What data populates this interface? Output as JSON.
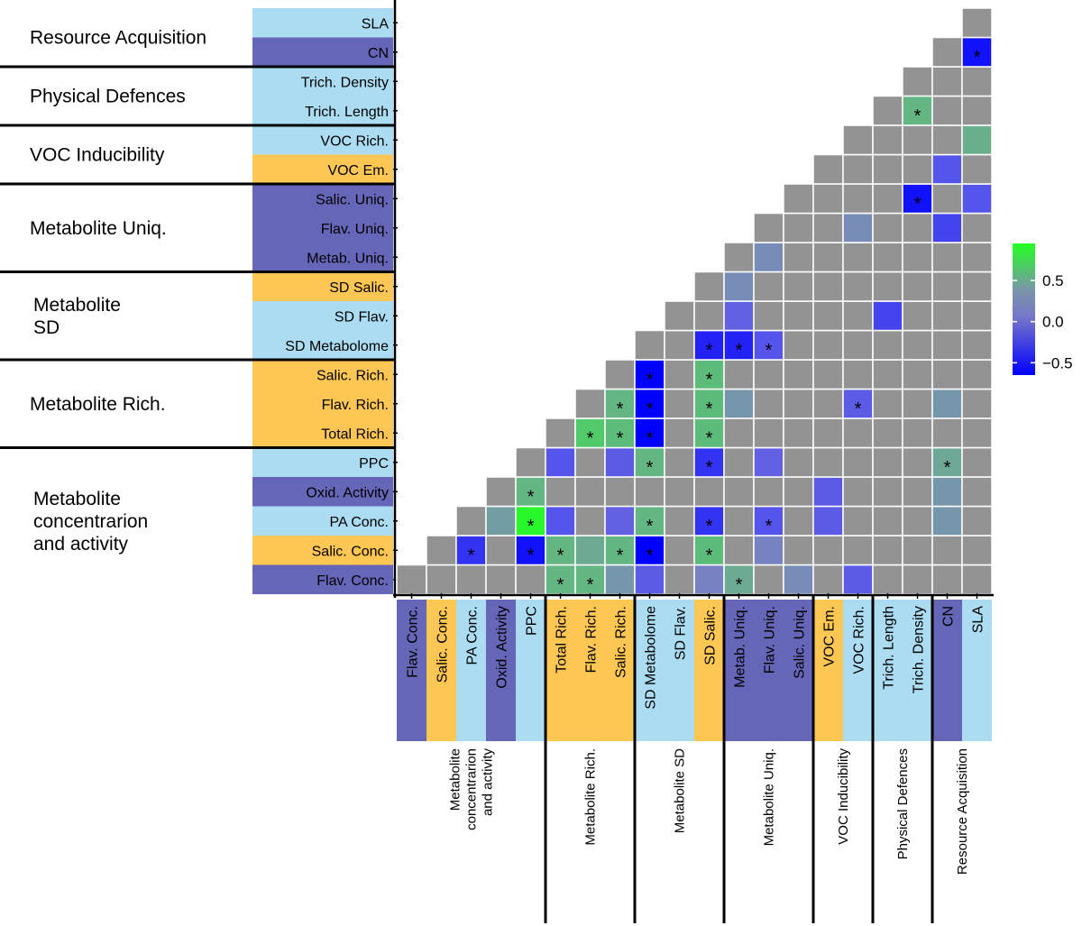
{
  "chart_data": {
    "type": "heatmap",
    "title": "",
    "variables": [
      "Flav. Conc.",
      "Salic. Conc.",
      "PA Conc.",
      "Oxid. Activity",
      "PPC",
      "Total Rich.",
      "Flav. Rich.",
      "Salic. Rich.",
      "SD Metabolome",
      "SD Flav.",
      "SD Salic.",
      "Metab. Uniq.",
      "Flav. Uniq.",
      "Salic. Uniq.",
      "VOC Em.",
      "VOC Rich.",
      "Trich. Length",
      "Trich. Density",
      "CN",
      "SLA"
    ],
    "variable_category": [
      "dark",
      "orange",
      "light",
      "dark",
      "light",
      "orange",
      "orange",
      "orange",
      "light",
      "light",
      "orange",
      "dark",
      "dark",
      "dark",
      "orange",
      "light",
      "light",
      "light",
      "dark",
      "light"
    ],
    "category_colors": {
      "dark": "#6666b8",
      "orange": "#fec652",
      "light": "#abdcf2",
      "nonsig": "#939393",
      "grid": "#ffffff"
    },
    "groups": [
      {
        "name": "Resource Acquisition",
        "left_label": "Resource Acquisition",
        "members": [
          "CN",
          "SLA"
        ]
      },
      {
        "name": "Physical Defences",
        "left_label": "Physical Defences",
        "members": [
          "Trich. Length",
          "Trich. Density"
        ]
      },
      {
        "name": "VOC Inducibility",
        "left_label": "VOC Inducibility",
        "members": [
          "VOC Em.",
          "VOC Rich."
        ]
      },
      {
        "name": "Metabolite Uniq.",
        "left_label": "Metabolite Uniq.",
        "members": [
          "Metab. Uniq.",
          "Flav. Uniq.",
          "Salic. Uniq."
        ]
      },
      {
        "name": "Metabolite SD",
        "left_label_lines": [
          "Metabolite",
          "SD"
        ],
        "members": [
          "SD Metabolome",
          "SD Flav.",
          "SD Salic."
        ]
      },
      {
        "name": "Metabolite Rich.",
        "left_label": "Metabolite Rich.",
        "members": [
          "Total Rich.",
          "Flav. Rich.",
          "Salic. Rich."
        ]
      },
      {
        "name": "Metabolite concentrarion and activity",
        "left_label_lines": [
          "Metabolite",
          "concentrarion",
          "and activity"
        ],
        "members": [
          "Flav. Conc.",
          "Salic. Conc.",
          "PA Conc.",
          "Oxid. Activity",
          "PPC"
        ]
      }
    ],
    "bottom_group_labels": [
      {
        "lines": [
          "Metabolite",
          "concentrarion",
          "and activity"
        ]
      },
      {
        "lines": [
          "Metabolite Rich."
        ]
      },
      {
        "lines": [
          "Metabolite SD"
        ]
      },
      {
        "lines": [
          "Metabolite Uniq."
        ]
      },
      {
        "lines": [
          "VOC Inducibility"
        ]
      },
      {
        "lines": [
          "Physical Defences"
        ]
      },
      {
        "lines": [
          "Resource Acquisition"
        ]
      }
    ],
    "cells": [
      {
        "row": "Salic. Conc.",
        "col": "PA Conc.",
        "value": -0.5,
        "sig": true
      },
      {
        "row": "PA Conc.",
        "col": "Oxid. Activity",
        "value": 0.15,
        "sig": false
      },
      {
        "row": "Salic. Conc.",
        "col": "PPC",
        "value": -0.6,
        "sig": true
      },
      {
        "row": "PA Conc.",
        "col": "PPC",
        "value": 0.9,
        "sig": true
      },
      {
        "row": "Oxid. Activity",
        "col": "PPC",
        "value": 0.4,
        "sig": true
      },
      {
        "row": "Flav. Conc.",
        "col": "Total Rich.",
        "value": 0.4,
        "sig": true
      },
      {
        "row": "Salic. Conc.",
        "col": "Total Rich.",
        "value": 0.4,
        "sig": true
      },
      {
        "row": "PA Conc.",
        "col": "Total Rich.",
        "value": -0.4,
        "sig": false
      },
      {
        "row": "PPC",
        "col": "Total Rich.",
        "value": -0.4,
        "sig": false
      },
      {
        "row": "Flav. Conc.",
        "col": "Flav. Rich.",
        "value": 0.4,
        "sig": true
      },
      {
        "row": "Salic. Conc.",
        "col": "Flav. Rich.",
        "value": 0.3,
        "sig": false
      },
      {
        "row": "Total Rich.",
        "col": "Flav. Rich.",
        "value": 0.55,
        "sig": true
      },
      {
        "row": "Flav. Conc.",
        "col": "Salic. Rich.",
        "value": 0.05,
        "sig": false
      },
      {
        "row": "Salic. Conc.",
        "col": "Salic. Rich.",
        "value": 0.4,
        "sig": true
      },
      {
        "row": "PA Conc.",
        "col": "Salic. Rich.",
        "value": -0.3,
        "sig": false
      },
      {
        "row": "PPC",
        "col": "Salic. Rich.",
        "value": -0.35,
        "sig": false
      },
      {
        "row": "Total Rich.",
        "col": "Salic. Rich.",
        "value": 0.45,
        "sig": true
      },
      {
        "row": "Flav. Rich.",
        "col": "Salic. Rich.",
        "value": 0.4,
        "sig": true
      },
      {
        "row": "Flav. Conc.",
        "col": "SD Metabolome",
        "value": -0.35,
        "sig": false
      },
      {
        "row": "Salic. Conc.",
        "col": "SD Metabolome",
        "value": -0.7,
        "sig": true
      },
      {
        "row": "PA Conc.",
        "col": "SD Metabolome",
        "value": 0.4,
        "sig": true
      },
      {
        "row": "PPC",
        "col": "SD Metabolome",
        "value": 0.4,
        "sig": true
      },
      {
        "row": "Total Rich.",
        "col": "SD Metabolome",
        "value": -0.7,
        "sig": true
      },
      {
        "row": "Flav. Rich.",
        "col": "SD Metabolome",
        "value": -0.7,
        "sig": true
      },
      {
        "row": "Salic. Rich.",
        "col": "SD Metabolome",
        "value": -0.65,
        "sig": true
      },
      {
        "row": "Flav. Conc.",
        "col": "SD Salic.",
        "value": -0.05,
        "sig": false
      },
      {
        "row": "Salic. Conc.",
        "col": "SD Salic.",
        "value": 0.45,
        "sig": true
      },
      {
        "row": "PA Conc.",
        "col": "SD Salic.",
        "value": -0.5,
        "sig": true
      },
      {
        "row": "PPC",
        "col": "SD Salic.",
        "value": -0.5,
        "sig": true
      },
      {
        "row": "Total Rich.",
        "col": "SD Salic.",
        "value": 0.45,
        "sig": true
      },
      {
        "row": "Flav. Rich.",
        "col": "SD Salic.",
        "value": 0.45,
        "sig": true
      },
      {
        "row": "Salic. Rich.",
        "col": "SD Salic.",
        "value": 0.45,
        "sig": true
      },
      {
        "row": "SD Metabolome",
        "col": "SD Salic.",
        "value": -0.55,
        "sig": true
      },
      {
        "row": "Flav. Conc.",
        "col": "Metab. Uniq.",
        "value": 0.3,
        "sig": true
      },
      {
        "row": "Flav. Rich.",
        "col": "Metab. Uniq.",
        "value": 0.05,
        "sig": false
      },
      {
        "row": "SD Metabolome",
        "col": "Metab. Uniq.",
        "value": -0.55,
        "sig": true
      },
      {
        "row": "SD Flav.",
        "col": "Metab. Uniq.",
        "value": -0.3,
        "sig": false
      },
      {
        "row": "SD Salic.",
        "col": "Metab. Uniq.",
        "value": 0.0,
        "sig": false
      },
      {
        "row": "Salic. Conc.",
        "col": "Flav. Uniq.",
        "value": -0.05,
        "sig": false
      },
      {
        "row": "PA Conc.",
        "col": "Flav. Uniq.",
        "value": -0.4,
        "sig": true
      },
      {
        "row": "PPC",
        "col": "Flav. Uniq.",
        "value": -0.3,
        "sig": false
      },
      {
        "row": "SD Metabolome",
        "col": "Flav. Uniq.",
        "value": -0.4,
        "sig": true
      },
      {
        "row": "Metab. Uniq.",
        "col": "Flav. Uniq.",
        "value": 0.0,
        "sig": false
      },
      {
        "row": "Flav. Conc.",
        "col": "Salic. Uniq.",
        "value": 0.0,
        "sig": false
      },
      {
        "row": "PA Conc.",
        "col": "VOC Em.",
        "value": -0.35,
        "sig": false
      },
      {
        "row": "Oxid. Activity",
        "col": "VOC Em.",
        "value": -0.35,
        "sig": false
      },
      {
        "row": "Flav. Conc.",
        "col": "VOC Rich.",
        "value": -0.35,
        "sig": false
      },
      {
        "row": "Flav. Rich.",
        "col": "VOC Rich.",
        "value": -0.35,
        "sig": true
      },
      {
        "row": "Flav. Uniq.",
        "col": "VOC Rich.",
        "value": 0.0,
        "sig": false
      },
      {
        "row": "SD Flav.",
        "col": "Trich. Length",
        "value": -0.45,
        "sig": false
      },
      {
        "row": "Trich. Length",
        "col": "Trich. Density",
        "value": 0.4,
        "sig": true
      },
      {
        "row": "Salic. Uniq.",
        "col": "Trich. Density",
        "value": -0.6,
        "sig": true
      },
      {
        "row": "PA Conc.",
        "col": "CN",
        "value": 0.05,
        "sig": false
      },
      {
        "row": "Oxid. Activity",
        "col": "CN",
        "value": 0.05,
        "sig": false
      },
      {
        "row": "PPC",
        "col": "CN",
        "value": 0.25,
        "sig": true
      },
      {
        "row": "Flav. Rich.",
        "col": "CN",
        "value": 0.05,
        "sig": false
      },
      {
        "row": "Flav. Uniq.",
        "col": "CN",
        "value": -0.45,
        "sig": false
      },
      {
        "row": "VOC Em.",
        "col": "CN",
        "value": -0.4,
        "sig": false
      },
      {
        "row": "CN",
        "col": "SLA",
        "value": -0.6,
        "sig": true
      },
      {
        "row": "VOC Rich.",
        "col": "SLA",
        "value": 0.35,
        "sig": false
      },
      {
        "row": "Salic. Uniq.",
        "col": "SLA",
        "value": -0.4,
        "sig": false
      }
    ],
    "legend": {
      "ticks": [
        0.5,
        0.0,
        -0.5
      ],
      "tick_labels": [
        "0.5",
        "0.0",
        "−0.5"
      ],
      "range": [
        -0.65,
        0.95
      ]
    },
    "significance_marker": "*"
  }
}
